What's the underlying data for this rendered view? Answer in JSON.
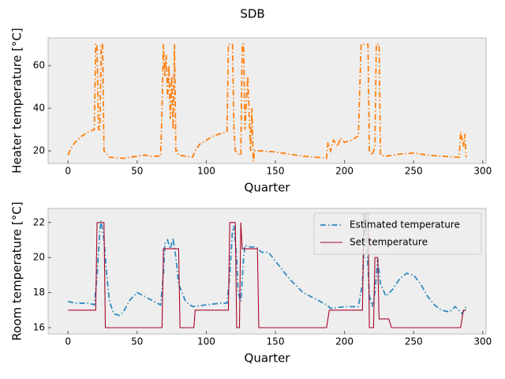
{
  "title": "SDB",
  "chart_data": [
    {
      "type": "line",
      "xlabel": "Quarter",
      "ylabel": "Heater temperature [°C]",
      "xlim": [
        -14.4,
        302.4
      ],
      "xticks": [
        0,
        50,
        100,
        150,
        200,
        250,
        300
      ],
      "ylim": [
        14.1,
        73
      ],
      "yticks": [
        20,
        40,
        60
      ],
      "grid": false,
      "series": [
        {
          "color": "#ff7f0e",
          "linestyle": "dashdot",
          "x": [
            0,
            2,
            5,
            10,
            15,
            19,
            20,
            21,
            22,
            23,
            24,
            25,
            26,
            30,
            40,
            50,
            55,
            60,
            67,
            68,
            69,
            70,
            71,
            72,
            73,
            74,
            75,
            76,
            77,
            78,
            79,
            80,
            90,
            92,
            95,
            100,
            105,
            110,
            115,
            116,
            117,
            119,
            120,
            121,
            124,
            125,
            126,
            127,
            128,
            130,
            132,
            133,
            134,
            135,
            140,
            150,
            160,
            170,
            180,
            187,
            188,
            190,
            192,
            195,
            197,
            200,
            205,
            210,
            212,
            217,
            218,
            220,
            222,
            223,
            225,
            226,
            230,
            240,
            250,
            260,
            270,
            283,
            284,
            286,
            287,
            288
          ],
          "values": [
            18,
            21,
            24,
            27,
            29,
            30,
            70,
            70,
            30,
            30,
            70,
            70,
            20,
            17,
            16.5,
            17.5,
            18,
            17.5,
            17.5,
            40,
            70,
            55,
            65,
            45,
            60,
            35,
            55,
            30,
            70,
            20,
            20,
            18,
            17,
            20,
            23,
            25,
            27,
            28,
            29,
            70,
            70,
            70,
            30,
            20,
            18,
            18,
            70,
            70,
            30,
            55,
            20,
            40,
            15,
            20,
            20,
            19.5,
            18.5,
            17.5,
            17,
            16.5,
            24,
            20,
            25,
            22,
            26,
            24,
            25,
            27,
            70,
            70,
            20,
            18,
            22,
            70,
            70,
            18,
            17.5,
            18.5,
            19,
            18,
            17.5,
            17,
            29,
            22,
            28,
            17
          ]
        }
      ]
    },
    {
      "type": "line",
      "xlabel": "Quarter",
      "ylabel": "Room temperature [°C]",
      "xlim": [
        -14.4,
        302.4
      ],
      "xticks": [
        0,
        50,
        100,
        150,
        200,
        250,
        300
      ],
      "ylim": [
        15.64,
        22.8
      ],
      "yticks": [
        16,
        18,
        20,
        22
      ],
      "grid": false,
      "legend": "upper right",
      "series": [
        {
          "name": "Estimated temperature",
          "color": "#348abd",
          "linestyle": "dashdot",
          "x": [
            0,
            5,
            15,
            19,
            21,
            23,
            24,
            26,
            28,
            30,
            33,
            37,
            40,
            45,
            50,
            55,
            62,
            67,
            69,
            70,
            72,
            74,
            76,
            78,
            80,
            85,
            90,
            100,
            110,
            115,
            117,
            119,
            120,
            122,
            123,
            125,
            127,
            128,
            132,
            136,
            140,
            145,
            150,
            160,
            170,
            180,
            187,
            190,
            200,
            210,
            213,
            215,
            216,
            218,
            220,
            222,
            224,
            226,
            230,
            235,
            240,
            245,
            250,
            255,
            260,
            265,
            270,
            276,
            280,
            285,
            288
          ],
          "values": [
            17.5,
            17.4,
            17.4,
            17.3,
            19,
            21.5,
            22.1,
            21,
            19,
            17.5,
            16.8,
            16.7,
            16.9,
            17.6,
            18,
            17.8,
            17.5,
            17.3,
            19,
            20.8,
            21,
            20.5,
            21.1,
            20,
            18.5,
            17.5,
            17.2,
            17.3,
            17.4,
            17.4,
            19,
            21.6,
            21.8,
            20,
            18,
            17.5,
            20,
            20.7,
            20.6,
            20.6,
            20.3,
            20.3,
            19.8,
            18.8,
            18,
            17.6,
            17.3,
            17.1,
            17.2,
            17.2,
            18.5,
            22.5,
            21,
            17.8,
            17.2,
            18,
            19.9,
            18.5,
            17.8,
            18.2,
            18.8,
            19.1,
            19,
            18.5,
            17.8,
            17.3,
            17,
            16.9,
            17.2,
            16.8,
            17.2
          ]
        },
        {
          "name": "Set temperature",
          "color": "#a60628",
          "linestyle": "solid",
          "x": [
            0,
            20,
            21,
            26,
            27,
            68,
            69,
            80,
            81,
            91,
            92,
            116,
            117,
            121,
            122,
            124,
            125,
            126,
            137,
            138,
            187,
            189,
            213,
            214,
            217,
            218,
            221,
            222,
            224,
            225,
            232,
            234,
            284,
            286,
            288
          ],
          "values": [
            17,
            17,
            22,
            22,
            16,
            16,
            20.5,
            20.5,
            16,
            16,
            17,
            17,
            22,
            22,
            16,
            16,
            22,
            20.5,
            20.5,
            16,
            16,
            17,
            17,
            22.5,
            22.5,
            16,
            16,
            20,
            20,
            16.5,
            16.5,
            16,
            16,
            17,
            17
          ]
        }
      ]
    }
  ]
}
